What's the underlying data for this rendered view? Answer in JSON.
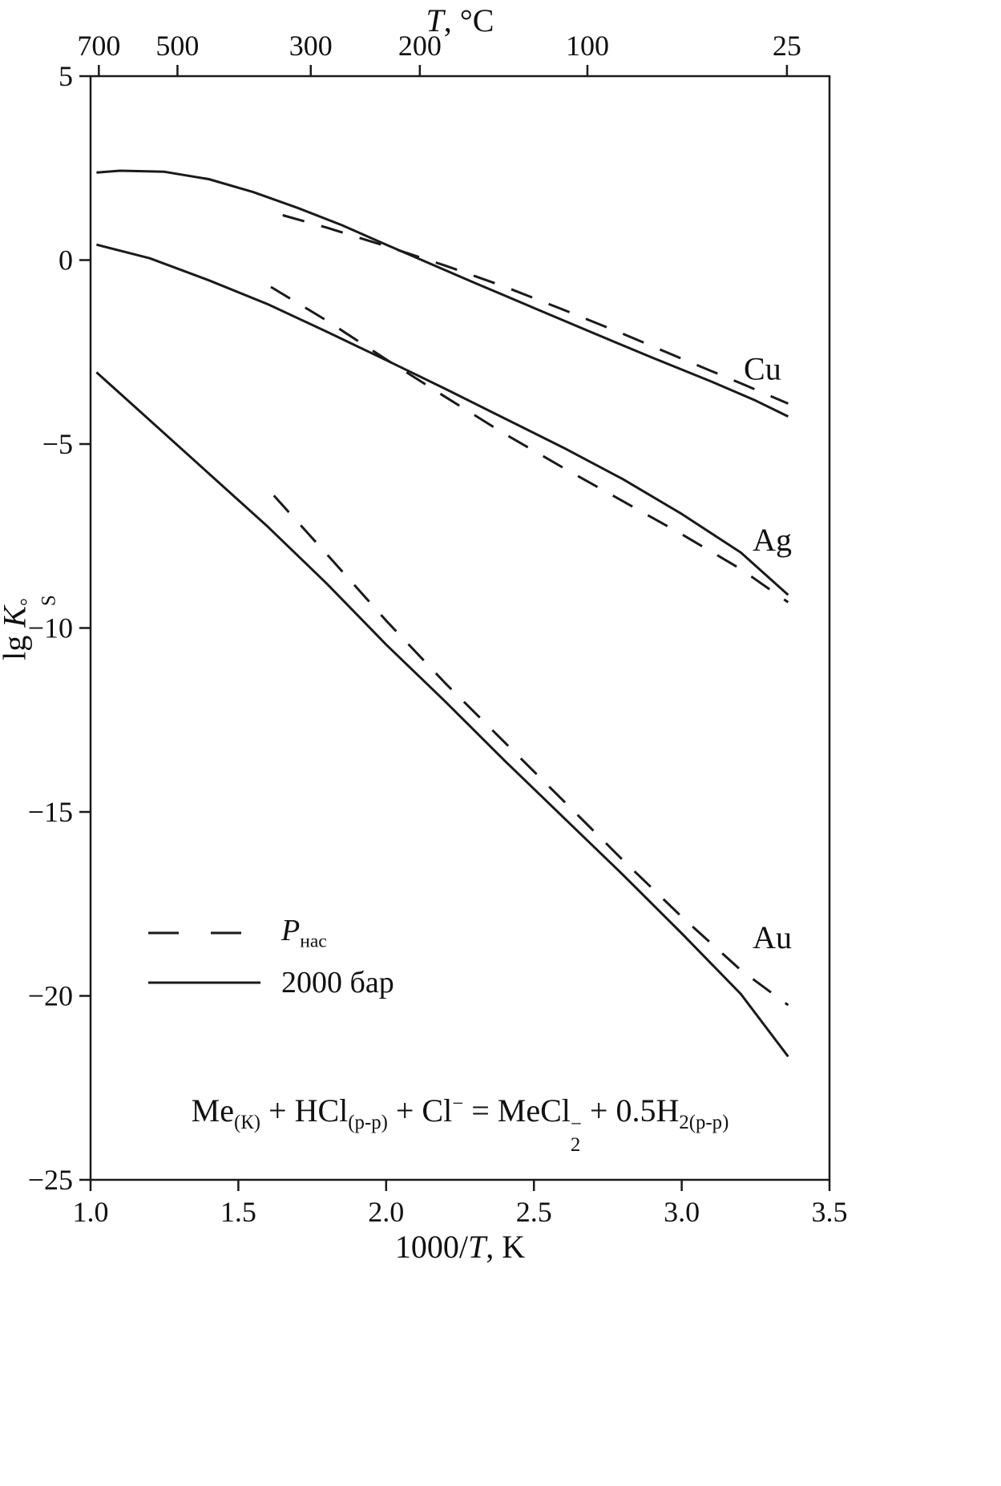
{
  "axes": {
    "top": {
      "var": "T",
      "rest": ", °C"
    },
    "x": {
      "prefix": "1000/",
      "var": "T",
      "suffix": ", K"
    },
    "y": {
      "prefix": "lg ",
      "var": "K",
      "sup": "°",
      "sub": "S"
    }
  },
  "legend": [
    {
      "style": "dashed",
      "label_var": "P",
      "label_sub": "нас"
    },
    {
      "style": "solid",
      "label": "2000 бар"
    }
  ],
  "equation": {
    "p1": "Me",
    "s1": "(К)",
    "p2": " + HCl",
    "s2": "(р-р)",
    "p3": " + Cl",
    "sup3": "−",
    "p4": " = MeCl",
    "sub4": "2",
    "sup4": "−",
    "p5": " + 0.5H",
    "s5": "2(р-р)"
  },
  "chart_data": {
    "type": "line",
    "title": "",
    "xlabel": "1000/T, K",
    "ylabel": "lg K°S",
    "top_axis_label": "T, °C",
    "xlim": [
      1.0,
      3.5
    ],
    "ylim": [
      -25,
      5
    ],
    "grid": false,
    "legend_position": "inside lower-left",
    "x_ticks": [
      {
        "v": 1.0,
        "label": "1.0"
      },
      {
        "v": 1.5,
        "label": "1.5"
      },
      {
        "v": 2.0,
        "label": "2.0"
      },
      {
        "v": 2.5,
        "label": "2.5"
      },
      {
        "v": 3.0,
        "label": "3.0"
      },
      {
        "v": 3.5,
        "label": "3.5"
      }
    ],
    "y_ticks": [
      {
        "v": 5,
        "label": "5"
      },
      {
        "v": 0,
        "label": "0"
      },
      {
        "v": -5,
        "label": "−5"
      },
      {
        "v": -10,
        "label": "−10"
      },
      {
        "v": -15,
        "label": "−15"
      },
      {
        "v": -20,
        "label": "−20"
      },
      {
        "v": -25,
        "label": "−25"
      }
    ],
    "top_ticks": [
      {
        "v": 1.028,
        "label": "700"
      },
      {
        "v": 1.294,
        "label": "500"
      },
      {
        "v": 1.745,
        "label": "300"
      },
      {
        "v": 2.114,
        "label": "200"
      },
      {
        "v": 2.681,
        "label": "100"
      },
      {
        "v": 3.356,
        "label": "25"
      }
    ],
    "series": [
      {
        "id": "cu-2000bar",
        "metal": "Cu",
        "condition": "2000 бар",
        "style": "solid",
        "points": [
          [
            1.02,
            2.38
          ],
          [
            1.1,
            2.43
          ],
          [
            1.25,
            2.4
          ],
          [
            1.4,
            2.2
          ],
          [
            1.55,
            1.85
          ],
          [
            1.7,
            1.42
          ],
          [
            1.85,
            0.95
          ],
          [
            2.0,
            0.42
          ],
          [
            2.15,
            -0.1
          ],
          [
            2.3,
            -0.62
          ],
          [
            2.5,
            -1.3
          ],
          [
            2.7,
            -1.98
          ],
          [
            2.9,
            -2.65
          ],
          [
            3.1,
            -3.3
          ],
          [
            3.25,
            -3.82
          ],
          [
            3.36,
            -4.25
          ]
        ]
      },
      {
        "id": "cu-pnas",
        "metal": "Cu",
        "condition": "Pнас",
        "style": "dashed",
        "points": [
          [
            1.65,
            1.22
          ],
          [
            1.8,
            0.88
          ],
          [
            2.0,
            0.38
          ],
          [
            2.2,
            -0.15
          ],
          [
            2.4,
            -0.72
          ],
          [
            2.6,
            -1.35
          ],
          [
            2.8,
            -2.0
          ],
          [
            3.0,
            -2.68
          ],
          [
            3.2,
            -3.35
          ],
          [
            3.36,
            -3.9
          ]
        ]
      },
      {
        "id": "ag-2000bar",
        "metal": "Ag",
        "condition": "2000 бар",
        "style": "solid",
        "points": [
          [
            1.02,
            0.42
          ],
          [
            1.2,
            0.05
          ],
          [
            1.4,
            -0.55
          ],
          [
            1.6,
            -1.2
          ],
          [
            1.8,
            -1.95
          ],
          [
            2.0,
            -2.72
          ],
          [
            2.2,
            -3.5
          ],
          [
            2.4,
            -4.3
          ],
          [
            2.6,
            -5.1
          ],
          [
            2.8,
            -5.95
          ],
          [
            3.0,
            -6.9
          ],
          [
            3.2,
            -7.95
          ],
          [
            3.36,
            -9.1
          ]
        ]
      },
      {
        "id": "ag-pnas",
        "metal": "Ag",
        "condition": "Pнас",
        "style": "dashed",
        "points": [
          [
            1.61,
            -0.73
          ],
          [
            1.8,
            -1.65
          ],
          [
            2.0,
            -2.7
          ],
          [
            2.2,
            -3.72
          ],
          [
            2.4,
            -4.72
          ],
          [
            2.6,
            -5.65
          ],
          [
            2.8,
            -6.55
          ],
          [
            3.0,
            -7.45
          ],
          [
            3.2,
            -8.4
          ],
          [
            3.36,
            -9.3
          ]
        ]
      },
      {
        "id": "au-2000bar",
        "metal": "Au",
        "condition": "2000 бар",
        "style": "solid",
        "points": [
          [
            1.02,
            -3.05
          ],
          [
            1.2,
            -4.35
          ],
          [
            1.4,
            -5.8
          ],
          [
            1.6,
            -7.25
          ],
          [
            1.8,
            -8.8
          ],
          [
            2.0,
            -10.45
          ],
          [
            2.2,
            -12.0
          ],
          [
            2.4,
            -13.6
          ],
          [
            2.6,
            -15.15
          ],
          [
            2.8,
            -16.7
          ],
          [
            3.0,
            -18.3
          ],
          [
            3.2,
            -19.95
          ],
          [
            3.36,
            -21.65
          ]
        ]
      },
      {
        "id": "au-pnas",
        "metal": "Au",
        "condition": "Pнас",
        "style": "dashed",
        "points": [
          [
            1.62,
            -6.4
          ],
          [
            1.8,
            -8.0
          ],
          [
            2.0,
            -9.8
          ],
          [
            2.2,
            -11.5
          ],
          [
            2.4,
            -13.1
          ],
          [
            2.6,
            -14.7
          ],
          [
            2.8,
            -16.3
          ],
          [
            3.0,
            -17.85
          ],
          [
            3.2,
            -19.3
          ],
          [
            3.36,
            -20.25
          ]
        ]
      }
    ],
    "annotations": [
      {
        "text": "Cu",
        "x": 3.21,
        "y": -3.25
      },
      {
        "text": "Ag",
        "x": 3.24,
        "y": -7.9
      },
      {
        "text": "Au",
        "x": 3.24,
        "y": -18.7
      }
    ]
  }
}
